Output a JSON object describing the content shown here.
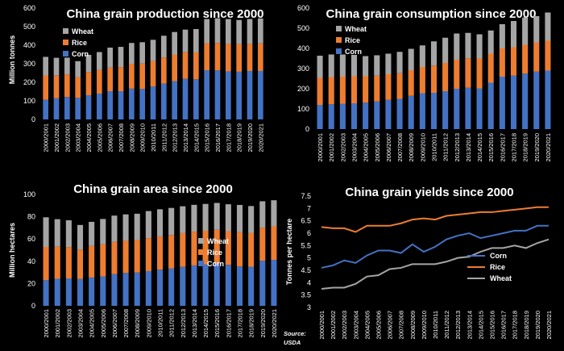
{
  "colors": {
    "corn": "#4472C4",
    "rice": "#ED7D31",
    "wheat": "#A5A5A5",
    "background": "#000000",
    "text": "#FFFFFF"
  },
  "source": {
    "label": "Source:",
    "name": "USDA"
  },
  "chart_data": [
    {
      "type": "bar",
      "stacked": true,
      "title": "China grain production since 2000",
      "ylabel": "Million tonnes",
      "ylim": [
        0,
        600
      ],
      "yticks": [
        0,
        100,
        200,
        300,
        400,
        500,
        600
      ],
      "legend_position": "top-left",
      "categories": [
        "2000/2001",
        "2001/2002",
        "2002/2003",
        "2003/2004",
        "2004/2005",
        "2005/2006",
        "2006/2007",
        "2007/2008",
        "2008/2009",
        "2009/2010",
        "2010/2011",
        "2011/2012",
        "2012/2013",
        "2013/2014",
        "2014/2015",
        "2015/2016",
        "2016/2017",
        "2017/2018",
        "2018/2019",
        "2019/2020",
        "2020/2021"
      ],
      "series": [
        {
          "name": "Corn",
          "values": [
            106,
            114,
            121,
            116,
            130,
            139,
            152,
            152,
            166,
            164,
            177,
            193,
            206,
            219,
            216,
            265,
            264,
            259,
            257,
            261,
            261
          ]
        },
        {
          "name": "Rice",
          "values": [
            131,
            124,
            122,
            112,
            126,
            127,
            127,
            130,
            134,
            137,
            137,
            141,
            144,
            143,
            145,
            146,
            148,
            148,
            148,
            146,
            149
          ]
        },
        {
          "name": "Wheat",
          "values": [
            100,
            94,
            90,
            86,
            92,
            97,
            108,
            109,
            112,
            115,
            115,
            117,
            121,
            122,
            126,
            130,
            133,
            134,
            131,
            134,
            134
          ]
        }
      ]
    },
    {
      "type": "bar",
      "stacked": true,
      "title": "China grain consumption since 2000",
      "ylabel": "",
      "ylim": [
        0,
        600
      ],
      "yticks": [
        0,
        100,
        200,
        300,
        400,
        500,
        600
      ],
      "legend_position": "top-left",
      "categories": [
        "2000/2001",
        "2001/2002",
        "2002/2003",
        "2003/2004",
        "2004/2005",
        "2005/2006",
        "2006/2007",
        "2007/2008",
        "2008/2009",
        "2009/2010",
        "2010/2011",
        "2011/2012",
        "2012/2013",
        "2013/2014",
        "2014/2015",
        "2015/2016",
        "2016/2017",
        "2017/2018",
        "2018/2019",
        "2019/2020",
        "2020/2021"
      ],
      "series": [
        {
          "name": "Corn",
          "values": [
            120,
            123,
            126,
            128,
            131,
            137,
            145,
            150,
            165,
            178,
            180,
            188,
            200,
            205,
            202,
            230,
            260,
            265,
            275,
            285,
            290
          ]
        },
        {
          "name": "Rice",
          "values": [
            134,
            135,
            134,
            134,
            131,
            128,
            127,
            127,
            127,
            130,
            135,
            140,
            144,
            146,
            148,
            144,
            140,
            141,
            143,
            145,
            148
          ]
        },
        {
          "name": "Wheat",
          "values": [
            110,
            112,
            110,
            106,
            100,
            101,
            102,
            106,
            106,
            107,
            120,
            125,
            130,
            126,
            120,
            115,
            120,
            130,
            135,
            130,
            140
          ]
        }
      ]
    },
    {
      "type": "bar",
      "stacked": true,
      "title": "China grain area since 2000",
      "ylabel": "Million hectares",
      "ylim": [
        0,
        100
      ],
      "yticks": [
        0,
        20,
        40,
        60,
        80,
        100
      ],
      "legend_position": "bottom-right",
      "categories": [
        "2000/2001",
        "2001/2002",
        "2002/2003",
        "2003/2004",
        "2004/2005",
        "2005/2006",
        "2006/2007",
        "2007/2008",
        "2008/2009",
        "2009/2010",
        "2010/2011",
        "2011/2012",
        "2012/2013",
        "2013/2014",
        "2014/2015",
        "2015/2016",
        "2016/2017",
        "2017/2018",
        "2018/2019",
        "2019/2020",
        "2020/2021"
      ],
      "series": [
        {
          "name": "Corn",
          "values": [
            23,
            24.3,
            24.6,
            24.1,
            25.4,
            26.4,
            28.5,
            29.5,
            29.9,
            31.2,
            32.5,
            33.5,
            35.0,
            36.3,
            37.1,
            38.1,
            36.8,
            35.4,
            35.1,
            40.5,
            41.3
          ]
        },
        {
          "name": "Rice",
          "values": [
            29.9,
            28.8,
            28.2,
            26.5,
            28.4,
            28.8,
            28.9,
            28.9,
            29.2,
            29.6,
            29.9,
            30.1,
            30.3,
            30.3,
            30.3,
            30.2,
            30.2,
            30.7,
            30.2,
            29.7,
            30.1
          ]
        },
        {
          "name": "Wheat",
          "values": [
            26.6,
            24.7,
            24.0,
            22.0,
            21.6,
            22.8,
            23.6,
            23.7,
            23.6,
            24.3,
            24.3,
            24.3,
            24.1,
            24.1,
            24.1,
            24.1,
            24.2,
            24.5,
            24.3,
            23.7,
            23.4
          ]
        }
      ]
    },
    {
      "type": "line",
      "title": "China grain yields since 2000",
      "ylabel": "Tonnes per hectare",
      "ylim": [
        3,
        7.5
      ],
      "yticks": [
        3,
        3.5,
        4,
        4.5,
        5,
        5.5,
        6,
        6.5,
        7,
        7.5
      ],
      "legend_position": "bottom-right",
      "categories": [
        "2000/2001",
        "2001/2002",
        "2002/2003",
        "2003/2004",
        "2004/2005",
        "2005/2006",
        "2006/2007",
        "2007/2008",
        "2008/2009",
        "2009/2010",
        "2010/2011",
        "2011/2012",
        "2012/2013",
        "2013/2014",
        "2014/2015",
        "2015/2016",
        "2016/2017",
        "2017/2018",
        "2018/2019",
        "2019/2020",
        "2020/2021"
      ],
      "series": [
        {
          "name": "Corn",
          "values": [
            4.6,
            4.7,
            4.9,
            4.8,
            5.1,
            5.3,
            5.3,
            5.2,
            5.55,
            5.25,
            5.45,
            5.75,
            5.9,
            6.0,
            5.8,
            5.9,
            6.0,
            6.1,
            6.1,
            6.3,
            6.3
          ]
        },
        {
          "name": "Rice",
          "values": [
            6.25,
            6.2,
            6.2,
            6.05,
            6.3,
            6.3,
            6.3,
            6.4,
            6.55,
            6.6,
            6.55,
            6.7,
            6.75,
            6.8,
            6.85,
            6.85,
            6.9,
            6.95,
            7.0,
            7.05,
            7.05
          ]
        },
        {
          "name": "Wheat",
          "values": [
            3.75,
            3.8,
            3.8,
            3.95,
            4.25,
            4.3,
            4.55,
            4.6,
            4.75,
            4.75,
            4.75,
            4.85,
            5.0,
            5.05,
            5.25,
            5.4,
            5.4,
            5.5,
            5.4,
            5.6,
            5.75
          ]
        }
      ]
    }
  ]
}
